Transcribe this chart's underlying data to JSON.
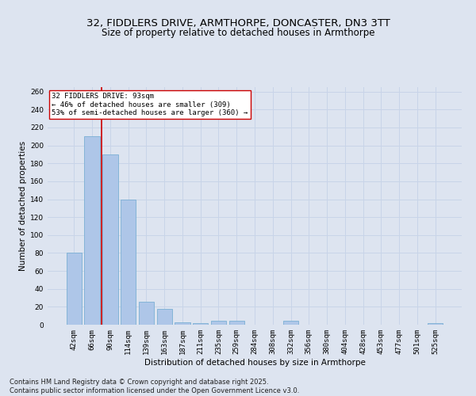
{
  "title1": "32, FIDDLERS DRIVE, ARMTHORPE, DONCASTER, DN3 3TT",
  "title2": "Size of property relative to detached houses in Armthorpe",
  "xlabel": "Distribution of detached houses by size in Armthorpe",
  "ylabel": "Number of detached properties",
  "categories": [
    "42sqm",
    "66sqm",
    "90sqm",
    "114sqm",
    "139sqm",
    "163sqm",
    "187sqm",
    "211sqm",
    "235sqm",
    "259sqm",
    "284sqm",
    "308sqm",
    "332sqm",
    "356sqm",
    "380sqm",
    "404sqm",
    "428sqm",
    "453sqm",
    "477sqm",
    "501sqm",
    "525sqm"
  ],
  "values": [
    80,
    210,
    190,
    140,
    26,
    18,
    3,
    2,
    4,
    4,
    0,
    0,
    4,
    0,
    0,
    0,
    0,
    0,
    0,
    0,
    2
  ],
  "bar_color": "#aec6e8",
  "bar_edge_color": "#7aafd4",
  "vline_x": 1.5,
  "vline_color": "#cc0000",
  "annotation_text": "32 FIDDLERS DRIVE: 93sqm\n← 46% of detached houses are smaller (309)\n53% of semi-detached houses are larger (360) →",
  "annotation_box_color": "#ffffff",
  "annotation_box_edge": "#cc0000",
  "ylim": [
    0,
    265
  ],
  "yticks": [
    0,
    20,
    40,
    60,
    80,
    100,
    120,
    140,
    160,
    180,
    200,
    220,
    240,
    260
  ],
  "grid_color": "#c8d4e8",
  "bg_color": "#dde4f0",
  "footer": "Contains HM Land Registry data © Crown copyright and database right 2025.\nContains public sector information licensed under the Open Government Licence v3.0.",
  "title_fontsize": 9.5,
  "subtitle_fontsize": 8.5,
  "axis_label_fontsize": 7.5,
  "tick_fontsize": 6.5,
  "annotation_fontsize": 6.5,
  "footer_fontsize": 6.0
}
